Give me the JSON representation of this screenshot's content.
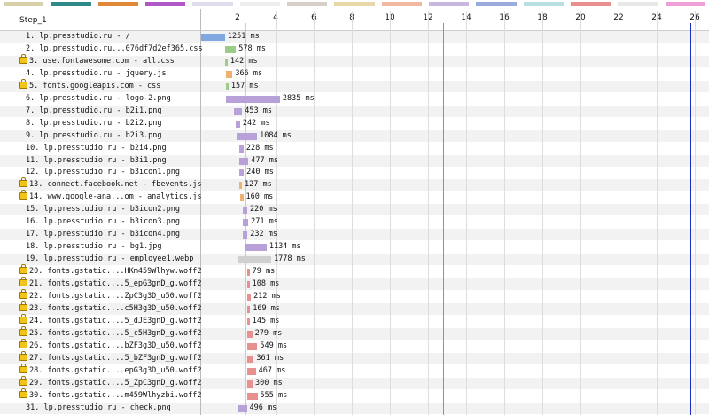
{
  "step_label": "Step_1",
  "axis": {
    "ticks": [
      "2",
      "4",
      "6",
      "8",
      "10",
      "12",
      "14",
      "16",
      "18",
      "20",
      "22",
      "24",
      "26"
    ],
    "unit": "seconds"
  },
  "legend_swatch_colors": [
    "#d8d0a8",
    "#2e8a8a",
    "#e08838",
    "#b058c8",
    "#dde",
    "#eee",
    "#d6d0c8",
    "#e8d8a8",
    "#f0b8a0",
    "#c8b8e0",
    "#9ad",
    "#b8e0e0",
    "#e89090",
    "#e8e8e8",
    "#f0a0d8"
  ],
  "markers": {
    "start_render": "#f0a830",
    "dom_content": "#c86ad0",
    "on_load": "#1a2fc8"
  },
  "rows": [
    {
      "n": "1.",
      "label": "lp.presstudio.ru - /",
      "secure": false,
      "duration": "1251 ms",
      "start": 0.0,
      "ms": 1251,
      "color": "#7fa8e0"
    },
    {
      "n": "2.",
      "label": "lp.presstudio.ru...076df7d2ef365.css",
      "secure": false,
      "duration": "578 ms",
      "start": 1.25,
      "ms": 578,
      "color": "#9ccc88"
    },
    {
      "n": "3.",
      "label": "use.fontawesome.com - all.css",
      "secure": true,
      "duration": "142 ms",
      "start": 1.25,
      "ms": 142,
      "color": "#9ccc88"
    },
    {
      "n": "4.",
      "label": "lp.presstudio.ru - jquery.js",
      "secure": false,
      "duration": "366 ms",
      "start": 1.28,
      "ms": 366,
      "color": "#f0b070"
    },
    {
      "n": "5.",
      "label": "fonts.googleapis.com - css",
      "secure": true,
      "duration": "157 ms",
      "start": 1.28,
      "ms": 157,
      "color": "#9ccc88"
    },
    {
      "n": "6.",
      "label": "lp.presstudio.ru - logo-2.png",
      "secure": false,
      "duration": "2835 ms",
      "start": 1.3,
      "ms": 2835,
      "color": "#b8a0d8"
    },
    {
      "n": "7.",
      "label": "lp.presstudio.ru - b2i1.png",
      "secure": false,
      "duration": "453 ms",
      "start": 1.7,
      "ms": 453,
      "color": "#b8a0d8"
    },
    {
      "n": "8.",
      "label": "lp.presstudio.ru - b2i2.png",
      "secure": false,
      "duration": "242 ms",
      "start": 1.8,
      "ms": 242,
      "color": "#b8a0d8"
    },
    {
      "n": "9.",
      "label": "lp.presstudio.ru - b2i3.png",
      "secure": false,
      "duration": "1084 ms",
      "start": 1.85,
      "ms": 1084,
      "color": "#b8a0d8"
    },
    {
      "n": "10.",
      "label": "lp.presstudio.ru - b2i4.png",
      "secure": false,
      "duration": "228 ms",
      "start": 2.0,
      "ms": 228,
      "color": "#b8a0d8"
    },
    {
      "n": "11.",
      "label": "lp.presstudio.ru - b3i1.png",
      "secure": false,
      "duration": "477 ms",
      "start": 2.0,
      "ms": 477,
      "color": "#b8a0d8"
    },
    {
      "n": "12.",
      "label": "lp.presstudio.ru - b3icon1.png",
      "secure": false,
      "duration": "240 ms",
      "start": 2.0,
      "ms": 240,
      "color": "#b8a0d8"
    },
    {
      "n": "13.",
      "label": "connect.facebook.net - fbevents.js",
      "secure": true,
      "duration": "127 ms",
      "start": 2.0,
      "ms": 127,
      "color": "#f0b070"
    },
    {
      "n": "14.",
      "label": "www.google-ana...om - analytics.js",
      "secure": true,
      "duration": "160 ms",
      "start": 2.05,
      "ms": 160,
      "color": "#f0b070"
    },
    {
      "n": "15.",
      "label": "lp.presstudio.ru - b3icon2.png",
      "secure": false,
      "duration": "220 ms",
      "start": 2.2,
      "ms": 220,
      "color": "#b8a0d8"
    },
    {
      "n": "16.",
      "label": "lp.presstudio.ru - b3icon3.png",
      "secure": false,
      "duration": "271 ms",
      "start": 2.2,
      "ms": 271,
      "color": "#b8a0d8"
    },
    {
      "n": "17.",
      "label": "lp.presstudio.ru - b3icon4.png",
      "secure": false,
      "duration": "232 ms",
      "start": 2.2,
      "ms": 232,
      "color": "#b8a0d8"
    },
    {
      "n": "18.",
      "label": "lp.presstudio.ru - bg1.jpg",
      "secure": false,
      "duration": "1134 ms",
      "start": 2.3,
      "ms": 1134,
      "color": "#b8a0d8"
    },
    {
      "n": "19.",
      "label": "lp.presstudio.ru - employee1.webp",
      "secure": false,
      "duration": "1778 ms",
      "start": 1.9,
      "ms": 1778,
      "color": "#d0d0d0"
    },
    {
      "n": "20.",
      "label": "fonts.gstatic....HKm459Wlhyw.woff2",
      "secure": true,
      "duration": "79 ms",
      "start": 2.4,
      "ms": 79,
      "color": "#e89090"
    },
    {
      "n": "21.",
      "label": "fonts.gstatic....5_epG3gnD_g.woff2",
      "secure": true,
      "duration": "108 ms",
      "start": 2.4,
      "ms": 108,
      "color": "#e89090"
    },
    {
      "n": "22.",
      "label": "fonts.gstatic....ZpC3g3D_u50.woff2",
      "secure": true,
      "duration": "212 ms",
      "start": 2.4,
      "ms": 212,
      "color": "#e89090"
    },
    {
      "n": "23.",
      "label": "fonts.gstatic....c5H3g3D_u50.woff2",
      "secure": true,
      "duration": "169 ms",
      "start": 2.4,
      "ms": 169,
      "color": "#e89090"
    },
    {
      "n": "24.",
      "label": "fonts.gstatic....5_dJE3gnD_g.woff2",
      "secure": true,
      "duration": "145 ms",
      "start": 2.4,
      "ms": 145,
      "color": "#e89090"
    },
    {
      "n": "25.",
      "label": "fonts.gstatic....5_c5H3gnD_g.woff2",
      "secure": true,
      "duration": "279 ms",
      "start": 2.4,
      "ms": 279,
      "color": "#e89090"
    },
    {
      "n": "26.",
      "label": "fonts.gstatic....bZF3g3D_u50.woff2",
      "secure": true,
      "duration": "549 ms",
      "start": 2.4,
      "ms": 549,
      "color": "#e89090"
    },
    {
      "n": "27.",
      "label": "fonts.gstatic....5_bZF3gnD_g.woff2",
      "secure": true,
      "duration": "361 ms",
      "start": 2.4,
      "ms": 361,
      "color": "#e89090"
    },
    {
      "n": "28.",
      "label": "fonts.gstatic....epG3g3D_u50.woff2",
      "secure": true,
      "duration": "467 ms",
      "start": 2.4,
      "ms": 467,
      "color": "#e89090"
    },
    {
      "n": "29.",
      "label": "fonts.gstatic....5_ZpC3gnD_g.woff2",
      "secure": true,
      "duration": "300 ms",
      "start": 2.4,
      "ms": 300,
      "color": "#e89090"
    },
    {
      "n": "30.",
      "label": "fonts.gstatic....m459Wlhyzbi.woff2",
      "secure": true,
      "duration": "555 ms",
      "start": 2.4,
      "ms": 555,
      "color": "#e89090"
    },
    {
      "n": "31.",
      "label": "lp.presstudio.ru - check.png",
      "secure": false,
      "duration": "496 ms",
      "start": 1.9,
      "ms": 496,
      "color": "#b8a0d8"
    }
  ]
}
